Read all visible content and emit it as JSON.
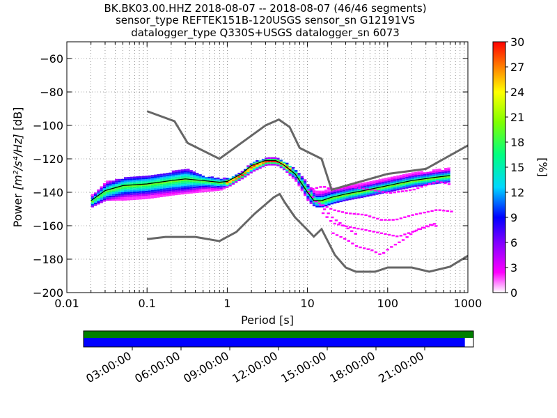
{
  "chart_data": {
    "type": "heatmap",
    "title_lines": [
      "BK.BK03.00.HHZ   2018-08-07 -- 2018-08-07  (46/46 segments)",
      "sensor_type REFTEK151B-120USGS sensor_sn G12191VS",
      "datalogger_type Q330S+USGS datalogger_sn 6073"
    ],
    "xlabel": "Period [s]",
    "ylabel_text": "Power ",
    "ylabel_unit": "[m²/s⁴/Hz]",
    "ylabel_db": " [dB]",
    "x_scale": "log",
    "xlim": [
      0.01,
      1000
    ],
    "ylim": [
      -200,
      -50
    ],
    "x_ticks": [
      0.01,
      0.1,
      1,
      10,
      100,
      1000
    ],
    "x_tick_labels": [
      "0.01",
      "0.1",
      "1",
      "10",
      "100",
      "1000"
    ],
    "y_ticks": [
      -200,
      -180,
      -160,
      -140,
      -120,
      -100,
      -80,
      -60
    ],
    "y_tick_labels": [
      "−200",
      "−180",
      "−160",
      "−140",
      "−120",
      "−100",
      "−80",
      "−60"
    ],
    "grid": true,
    "colorbar": {
      "label": "[%]",
      "range": [
        0,
        30
      ],
      "ticks": [
        0,
        3,
        6,
        9,
        12,
        15,
        18,
        21,
        24,
        27,
        30
      ],
      "tick_labels": [
        "0",
        "3",
        "6",
        "9",
        "12",
        "15",
        "18",
        "21",
        "24",
        "27",
        "30"
      ]
    },
    "noise_models": [
      {
        "name": "high",
        "color": "#666666",
        "points": [
          [
            0.1,
            -91.5
          ],
          [
            0.22,
            -97.5
          ],
          [
            0.32,
            -110.5
          ],
          [
            0.8,
            -120
          ],
          [
            3,
            -100
          ],
          [
            4.4,
            -96.5
          ],
          [
            6,
            -101
          ],
          [
            8,
            -113.5
          ],
          [
            15,
            -120
          ],
          [
            20,
            -138.5
          ],
          [
            60,
            -132
          ],
          [
            100,
            -129
          ],
          [
            300,
            -126
          ],
          [
            1000,
            -112
          ]
        ]
      },
      {
        "name": "low",
        "color": "#666666",
        "points": [
          [
            0.1,
            -168
          ],
          [
            0.17,
            -166.7
          ],
          [
            0.4,
            -166.7
          ],
          [
            0.8,
            -169.2
          ],
          [
            1.3,
            -163.7
          ],
          [
            2.2,
            -152.8
          ],
          [
            3.8,
            -143
          ],
          [
            4.5,
            -141
          ],
          [
            5.2,
            -146
          ],
          [
            7,
            -155
          ],
          [
            10,
            -162.5
          ],
          [
            12,
            -166.5
          ],
          [
            15,
            -162
          ],
          [
            22,
            -177.5
          ],
          [
            30,
            -185
          ],
          [
            40,
            -187.5
          ],
          [
            70,
            -187.5
          ],
          [
            100,
            -185
          ],
          [
            200,
            -185
          ],
          [
            330,
            -187.5
          ],
          [
            600,
            -184.5
          ],
          [
            1000,
            -178
          ]
        ]
      }
    ],
    "ppsd_band": [
      {
        "x": 0.02,
        "lo": -148,
        "hi": -141
      },
      {
        "x": 0.03,
        "lo": -144,
        "hi": -133
      },
      {
        "x": 0.05,
        "lo": -144,
        "hi": -131
      },
      {
        "x": 0.1,
        "lo": -143,
        "hi": -130
      },
      {
        "x": 0.2,
        "lo": -141,
        "hi": -127
      },
      {
        "x": 0.3,
        "lo": -140,
        "hi": -125
      },
      {
        "x": 0.5,
        "lo": -139,
        "hi": -130
      },
      {
        "x": 0.8,
        "lo": -138,
        "hi": -131
      },
      {
        "x": 1,
        "lo": -136,
        "hi": -131
      },
      {
        "x": 1.5,
        "lo": -131,
        "hi": -127
      },
      {
        "x": 2,
        "lo": -127,
        "hi": -121
      },
      {
        "x": 3,
        "lo": -123,
        "hi": -119
      },
      {
        "x": 4,
        "lo": -123,
        "hi": -119
      },
      {
        "x": 5,
        "lo": -126,
        "hi": -121
      },
      {
        "x": 7,
        "lo": -133,
        "hi": -126
      },
      {
        "x": 10,
        "lo": -145,
        "hi": -135
      },
      {
        "x": 12,
        "lo": -148,
        "hi": -139
      },
      {
        "x": 15,
        "lo": -148,
        "hi": -138
      },
      {
        "x": 20,
        "lo": -146,
        "hi": -137
      },
      {
        "x": 30,
        "lo": -144,
        "hi": -136
      },
      {
        "x": 50,
        "lo": -142,
        "hi": -134
      },
      {
        "x": 100,
        "lo": -139,
        "hi": -131
      },
      {
        "x": 200,
        "lo": -136,
        "hi": -128
      },
      {
        "x": 400,
        "lo": -134,
        "hi": -126
      },
      {
        "x": 600,
        "lo": -133,
        "hi": -125
      }
    ],
    "mean_curve": [
      [
        0.02,
        -145
      ],
      [
        0.03,
        -139
      ],
      [
        0.05,
        -136
      ],
      [
        0.1,
        -135
      ],
      [
        0.2,
        -133
      ],
      [
        0.3,
        -132
      ],
      [
        0.5,
        -133
      ],
      [
        0.8,
        -134
      ],
      [
        1,
        -133.5
      ],
      [
        1.5,
        -129
      ],
      [
        2,
        -124
      ],
      [
        3,
        -121
      ],
      [
        4,
        -121
      ],
      [
        5,
        -123.5
      ],
      [
        7,
        -129
      ],
      [
        10,
        -140
      ],
      [
        12,
        -145
      ],
      [
        15,
        -145
      ],
      [
        20,
        -143
      ],
      [
        30,
        -141
      ],
      [
        50,
        -139
      ],
      [
        100,
        -136
      ],
      [
        200,
        -133
      ],
      [
        400,
        -131
      ],
      [
        600,
        -130
      ]
    ],
    "outlier_traces": [
      [
        [
          10,
          -138
        ],
        [
          15,
          -136
        ],
        [
          20,
          -138
        ],
        [
          30,
          -136
        ],
        [
          60,
          -138
        ],
        [
          100,
          -140
        ],
        [
          200,
          -138
        ],
        [
          400,
          -133
        ],
        [
          600,
          -135
        ]
      ],
      [
        [
          12,
          -145
        ],
        [
          20,
          -150
        ],
        [
          30,
          -152
        ],
        [
          50,
          -153
        ],
        [
          80,
          -156
        ],
        [
          120,
          -156
        ],
        [
          200,
          -153
        ],
        [
          400,
          -150
        ],
        [
          600,
          -151
        ]
      ],
      [
        [
          15,
          -152
        ],
        [
          20,
          -158
        ],
        [
          30,
          -160
        ],
        [
          50,
          -162
        ],
        [
          80,
          -164
        ],
        [
          130,
          -166
        ],
        [
          200,
          -163
        ],
        [
          350,
          -159
        ],
        [
          400,
          -160
        ]
      ],
      [
        [
          20,
          -164
        ],
        [
          30,
          -168
        ],
        [
          40,
          -172
        ],
        [
          60,
          -174
        ],
        [
          80,
          -177
        ],
        [
          100,
          -173
        ],
        [
          150,
          -168
        ],
        [
          220,
          -162
        ],
        [
          320,
          -159
        ],
        [
          400,
          -158
        ]
      ],
      [
        [
          10,
          -140
        ],
        [
          20,
          -155
        ],
        [
          40,
          -165
        ]
      ]
    ],
    "time_bar": {
      "tick_labels": [
        "03:00:00",
        "06:00:00",
        "09:00:00",
        "12:00:00",
        "15:00:00",
        "18:00:00",
        "21:00:00"
      ],
      "tick_hours": [
        3,
        6,
        9,
        12,
        15,
        18,
        21
      ],
      "total_hours": 24,
      "top_color": "#008000",
      "bottom_color": "#0000ff",
      "bottom_coverage_fraction": 0.978
    }
  }
}
